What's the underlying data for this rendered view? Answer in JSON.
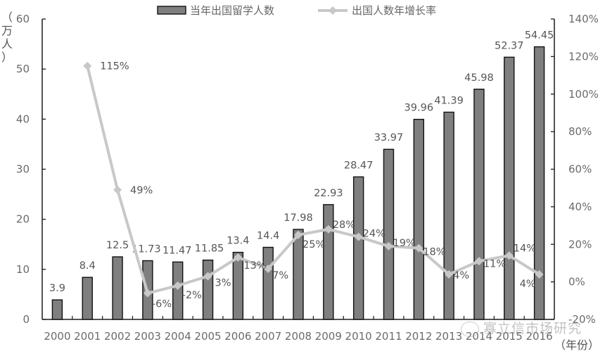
{
  "chart_data": {
    "type": "bar+line",
    "title": "",
    "xlabel": "（年份）",
    "ylabel_left": "（万人）",
    "ylabel_right": "",
    "categories": [
      "2000",
      "2001",
      "2002",
      "2003",
      "2004",
      "2005",
      "2006",
      "2007",
      "2008",
      "2009",
      "2010",
      "2011",
      "2012",
      "2013",
      "2014",
      "2015",
      "2016"
    ],
    "series": [
      {
        "name": "当年出国留学人数",
        "type": "bar",
        "axis": "left",
        "color": "#7f7f7f",
        "values": [
          3.9,
          8.4,
          12.5,
          11.73,
          11.47,
          11.85,
          13.4,
          14.4,
          17.98,
          22.93,
          28.47,
          33.97,
          39.96,
          41.39,
          45.98,
          52.37,
          54.45
        ],
        "labels": [
          "3.9",
          "8.4",
          "12.5",
          "11.73",
          "11.47",
          "11.85",
          "13.4",
          "14.4",
          "17.98",
          "22.93",
          "28.47",
          "33.97",
          "39.96",
          "41.39",
          "45.98",
          "52.37",
          "54.45"
        ]
      },
      {
        "name": "出国人数年增长率",
        "type": "line",
        "axis": "right",
        "color": "#c8c8c8",
        "values": [
          null,
          115,
          49,
          -6,
          -2,
          3,
          13,
          7,
          25,
          28,
          24,
          19,
          18,
          4,
          11,
          14,
          4
        ],
        "labels": [
          null,
          "115%",
          "49%",
          "-6%",
          "-2%",
          "3%",
          "13%",
          "7%",
          "25%",
          "28%",
          "24%",
          "19%",
          "18%",
          "4%",
          "11%",
          "14%",
          "4%"
        ]
      }
    ],
    "ylim_left": [
      0,
      60
    ],
    "yticks_left": [
      "0",
      "10",
      "20",
      "30",
      "40",
      "50",
      "60"
    ],
    "ylim_right": [
      -20,
      140
    ],
    "yticks_right": [
      "-20%",
      "0%",
      "20%",
      "40%",
      "60%",
      "80%",
      "100%",
      "120%",
      "140%"
    ],
    "grid": false,
    "legend_position": "top"
  },
  "legend": {
    "bar_label": "当年出国留学人数",
    "line_label": "出国人数年增长率"
  },
  "axes": {
    "left_unit": [
      "（",
      "万",
      "人",
      "）"
    ],
    "x_unit": "（年份）"
  },
  "watermark": {
    "text": "寡立信市场研究"
  }
}
